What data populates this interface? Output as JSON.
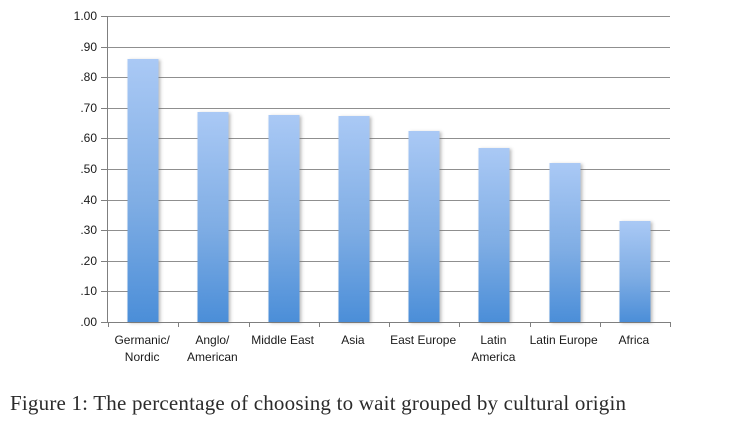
{
  "caption": "Figure 1: The percentage of choosing to wait grouped by cultural origin",
  "colors": {
    "bar_gradient_top": "#aac9f5",
    "bar_gradient_bottom": "#4b8ed8",
    "gridline": "#8f8f8f",
    "axis": "#7f7f7f",
    "background": "#ffffff",
    "text": "#1a1a1a"
  },
  "chart_data": {
    "type": "bar",
    "title": "",
    "xlabel": "",
    "ylabel": "",
    "categories": [
      "Germanic/\nNordic",
      "Anglo/\nAmerican",
      "Middle East",
      "Asia",
      "East Europe",
      "Latin\nAmerica",
      "Latin Europe",
      "Africa"
    ],
    "values": [
      0.86,
      0.685,
      0.675,
      0.672,
      0.625,
      0.57,
      0.52,
      0.33
    ],
    "ylim": [
      0.0,
      1.0
    ],
    "grid": true,
    "legend": false,
    "yticks": [
      {
        "value": 1.0,
        "label": "1.00"
      },
      {
        "value": 0.9,
        "label": ".90"
      },
      {
        "value": 0.8,
        "label": ".80"
      },
      {
        "value": 0.7,
        "label": ".70"
      },
      {
        "value": 0.6,
        "label": ".60"
      },
      {
        "value": 0.5,
        "label": ".50"
      },
      {
        "value": 0.4,
        "label": ".40"
      },
      {
        "value": 0.3,
        "label": ".30"
      },
      {
        "value": 0.2,
        "label": ".20"
      },
      {
        "value": 0.1,
        "label": ".10"
      },
      {
        "value": 0.0,
        "label": ".00"
      }
    ]
  }
}
